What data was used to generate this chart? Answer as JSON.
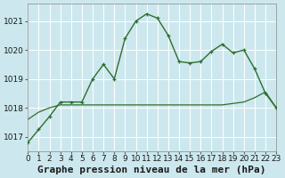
{
  "title": "Graphe pression niveau de la mer (hPa)",
  "background_color": "#cce8ee",
  "grid_color": "#b0d8e0",
  "line_color": "#2d6e2d",
  "xlim": [
    0,
    23
  ],
  "ylim": [
    1016.5,
    1021.6
  ],
  "yticks": [
    1017,
    1018,
    1019,
    1020,
    1021
  ],
  "xticks": [
    0,
    1,
    2,
    3,
    4,
    5,
    6,
    7,
    8,
    9,
    10,
    11,
    12,
    13,
    14,
    15,
    16,
    17,
    18,
    19,
    20,
    21,
    22,
    23
  ],
  "series1_x": [
    0,
    1,
    2,
    3,
    4,
    5,
    6,
    7,
    8,
    9,
    10,
    11,
    12,
    13,
    14,
    15,
    16,
    17,
    18,
    19,
    20,
    21,
    22,
    23
  ],
  "series1_y": [
    1016.8,
    1017.25,
    1017.7,
    1018.2,
    1018.2,
    1018.2,
    1019.0,
    1019.5,
    1019.0,
    1020.4,
    1021.0,
    1021.25,
    1021.1,
    1020.5,
    1019.6,
    1019.55,
    1019.6,
    1019.95,
    1020.2,
    1019.9,
    1020.0,
    1019.35,
    1018.5,
    1018.0
  ],
  "series2_x": [
    0,
    1,
    2,
    3,
    4,
    5,
    6,
    7,
    8,
    9,
    10,
    11,
    12,
    13,
    14,
    15,
    16,
    17,
    18,
    19,
    20,
    21,
    22,
    23
  ],
  "series2_y": [
    1017.6,
    1017.85,
    1018.0,
    1018.1,
    1018.1,
    1018.1,
    1018.1,
    1018.1,
    1018.1,
    1018.1,
    1018.1,
    1018.1,
    1018.1,
    1018.1,
    1018.1,
    1018.1,
    1018.1,
    1018.1,
    1018.1,
    1018.15,
    1018.2,
    1018.35,
    1018.55,
    1018.0
  ],
  "title_fontsize": 8,
  "tick_fontsize": 6.5
}
